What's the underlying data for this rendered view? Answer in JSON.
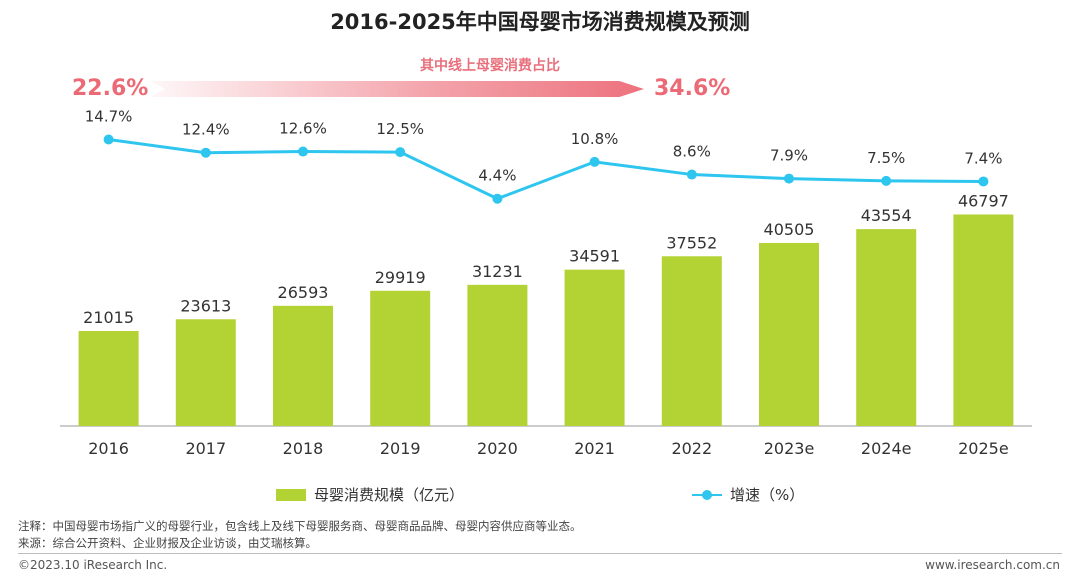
{
  "chart_data": {
    "type": "bar",
    "title": "2016-2025年中国母婴市场消费规模及预测",
    "categories": [
      "2016",
      "2017",
      "2018",
      "2019",
      "2020",
      "2021",
      "2022",
      "2023e",
      "2024e",
      "2025e"
    ],
    "series": [
      {
        "name": "母婴消费规模（亿元）",
        "type": "bar",
        "color": "#b3d234",
        "values": [
          21015,
          23613,
          26593,
          29919,
          31231,
          34591,
          37552,
          40505,
          43554,
          46797
        ]
      },
      {
        "name": "增速（%）",
        "type": "line",
        "color": "#2ec5ef",
        "values": [
          14.7,
          12.4,
          12.6,
          12.5,
          4.4,
          10.8,
          8.6,
          7.9,
          7.5,
          7.4
        ],
        "labels": [
          "14.7%",
          "12.4%",
          "12.6%",
          "12.5%",
          "4.4%",
          "10.8%",
          "8.6%",
          "7.9%",
          "7.5%",
          "7.4%"
        ]
      }
    ],
    "online_share": {
      "label": "其中线上母婴消费占比",
      "start": "22.6%",
      "end": "34.6%"
    },
    "ylim": [
      0,
      50000
    ],
    "grid": false,
    "legend": "bottom"
  },
  "notes": {
    "note": "注释：中国母婴市场指广义的母婴行业，包含线上及线下母婴服务商、母婴商品品牌、母婴内容供应商等业态。",
    "source": "来源：综合公开资料、企业财报及企业访谈，由艾瑞核算。"
  },
  "footer": {
    "copyright": "©2023.10 iResearch Inc.",
    "website": "www.iresearch.com.cn"
  }
}
